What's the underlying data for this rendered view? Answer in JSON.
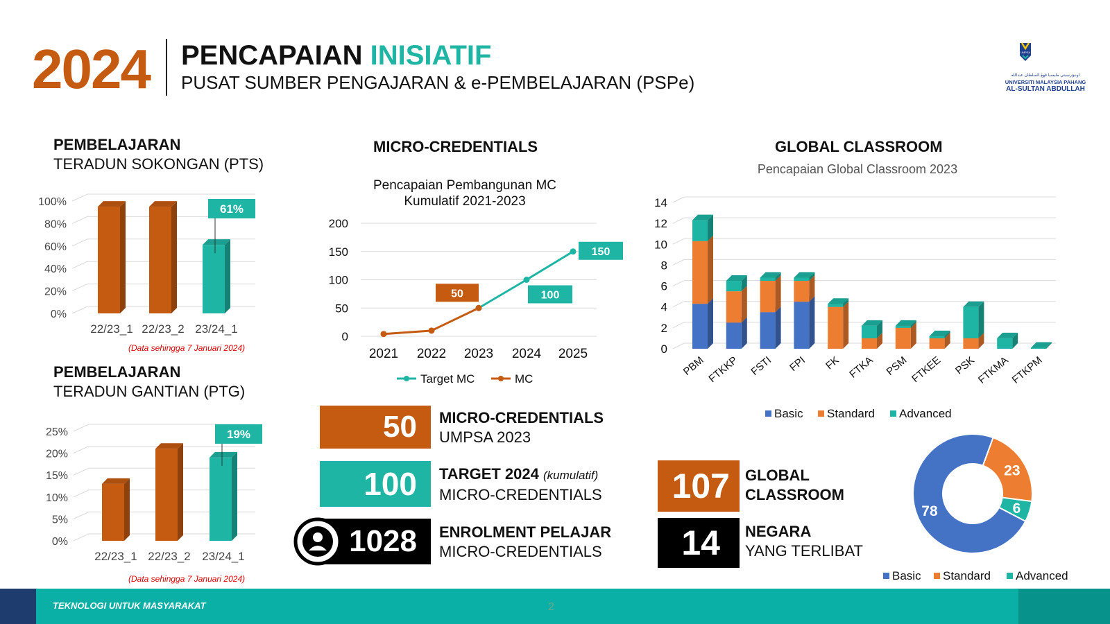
{
  "header": {
    "year": "2024",
    "title_a": "PENCAPAIAN",
    "title_b": "INISIATIF",
    "subtitle": "PUSAT SUMBER PENGAJARAN & e-PEMBELAJARAN (PSPe)",
    "logo_lines": [
      "اونيۏرسيتي مليسيا ڤهڠ السلطان عبدالله",
      "UNIVERSITI MALAYSIA PAHANG",
      "AL-SULTAN ABDULLAH"
    ],
    "logo_badge": "UMPSA"
  },
  "pts": {
    "title": "PEMBELAJARAN",
    "subtitle": "TERADUN SOKONGAN (PTS)",
    "note": "(Data sehingga 7 Januari 2024)"
  },
  "ptg": {
    "title": "PEMBELAJARAN",
    "subtitle": "TERADUN GANTIAN (PTG)",
    "note": "(Data sehingga 7 Januari 2024)"
  },
  "mc": {
    "section_title": "MICRO-CREDENTIALS",
    "stats": [
      {
        "value": "50",
        "label_bold": "MICRO-CREDENTIALS",
        "label_extra": "",
        "label_line2": "UMPSA 2023",
        "color": "#C55A11"
      },
      {
        "value": "100",
        "label_bold": "TARGET 2024",
        "label_extra": "(kumulatif)",
        "label_line2": "MICRO-CREDENTIALS",
        "color": "#1FB5A4"
      },
      {
        "value": "1028",
        "label_bold": "ENROLMENT PELAJAR",
        "label_extra": "",
        "label_line2": "MICRO-CREDENTIALS",
        "color": "#000000",
        "icon": "user-circle-icon"
      }
    ]
  },
  "gc": {
    "section_title": "GLOBAL CLASSROOM",
    "stats": [
      {
        "value": "107",
        "line1": "GLOBAL",
        "line2": "CLASSROOM",
        "color": "#C55A11"
      },
      {
        "value": "14",
        "line1": "NEGARA",
        "line2": "YANG TERLIBAT",
        "color": "#000000"
      }
    ]
  },
  "footer": {
    "tagline": "TEKNOLOGI UNTUK MASYARAKAT",
    "page": "2"
  },
  "colors": {
    "orange_dark": "#C55A11",
    "teal": "#1FB5A4",
    "blue": "#4472C4",
    "orange": "#ED7D31"
  },
  "chart_data": [
    {
      "id": "pts",
      "type": "bar",
      "title": "",
      "categories": [
        "22/23_1",
        "22/23_2",
        "23/24_1"
      ],
      "values": [
        95,
        95,
        61
      ],
      "unit": "%",
      "bar_colors": [
        "#C55A11",
        "#C55A11",
        "#1FB5A4"
      ],
      "callout": {
        "index": 2,
        "label": "61%"
      },
      "yticks": [
        "0%",
        "20%",
        "40%",
        "60%",
        "80%",
        "100%"
      ],
      "ylim": [
        0,
        100
      ],
      "grid": true
    },
    {
      "id": "ptg",
      "type": "bar",
      "title": "",
      "categories": [
        "22/23_1",
        "22/23_2",
        "23/24_1"
      ],
      "values": [
        13,
        21,
        19
      ],
      "unit": "%",
      "bar_colors": [
        "#C55A11",
        "#C55A11",
        "#1FB5A4"
      ],
      "callout": {
        "index": 2,
        "label": "19%"
      },
      "yticks": [
        "0%",
        "5%",
        "10%",
        "15%",
        "20%",
        "25%"
      ],
      "ylim": [
        0,
        25
      ],
      "grid": true
    },
    {
      "id": "mc",
      "type": "line",
      "title": "Pencapaian Pembangunan MC\nKumulatif 2021-2023",
      "x": [
        "2021",
        "2022",
        "2023",
        "2024",
        "2025"
      ],
      "yticks": [
        "0",
        "50",
        "100",
        "150",
        "200"
      ],
      "ylim": [
        0,
        200
      ],
      "grid": true,
      "legend": "bottom",
      "series": [
        {
          "name": "Target MC",
          "x": [
            "2023",
            "2024",
            "2025"
          ],
          "values": [
            50,
            100,
            150
          ],
          "color": "#1FB5A4"
        },
        {
          "name": "MC",
          "x": [
            "2021",
            "2022",
            "2023"
          ],
          "values": [
            4,
            10,
            50
          ],
          "color": "#C55A11"
        }
      ],
      "labels": [
        {
          "text": "50",
          "x": "2023",
          "value": 50,
          "color": "#C55A11"
        },
        {
          "text": "100",
          "x": "2024",
          "value": 100,
          "color": "#1FB5A4"
        },
        {
          "text": "150",
          "x": "2025",
          "value": 150,
          "color": "#1FB5A4"
        }
      ]
    },
    {
      "id": "gc_bar",
      "type": "bar",
      "stacked": true,
      "title": "Pencapaian Global Classroom 2023",
      "categories": [
        "PBM",
        "FTKKP",
        "FSTI",
        "FPI",
        "FK",
        "FTKA",
        "PSM",
        "FTKEE",
        "PSK",
        "FTKMA",
        "FTKPM"
      ],
      "yticks": [
        "0",
        "2",
        "4",
        "6",
        "8",
        "10",
        "12",
        "14"
      ],
      "ylim": [
        0,
        14
      ],
      "grid": true,
      "legend": "bottom",
      "series": [
        {
          "name": "Basic",
          "color": "#4472C4",
          "values": [
            4.3,
            2.5,
            3.5,
            4.5,
            0,
            0,
            0,
            0,
            0,
            0,
            0
          ]
        },
        {
          "name": "Standard",
          "color": "#ED7D31",
          "values": [
            6,
            3,
            3,
            2,
            4,
            1,
            2,
            1,
            1,
            0,
            0
          ]
        },
        {
          "name": "Advanced",
          "color": "#1FB5A4",
          "values": [
            2,
            1,
            0.3,
            0.3,
            0.3,
            1.2,
            0.2,
            0.2,
            3,
            1,
            0.1
          ]
        }
      ]
    },
    {
      "id": "gc_pie",
      "type": "pie",
      "donut": true,
      "legend": "bottom",
      "slices": [
        {
          "name": "Basic",
          "value": 78,
          "label": "78",
          "color": "#4472C4"
        },
        {
          "name": "Standard",
          "value": 23,
          "label": "23",
          "color": "#ED7D31"
        },
        {
          "name": "Advanced",
          "value": 6,
          "label": "6",
          "color": "#1FB5A4"
        }
      ]
    }
  ]
}
